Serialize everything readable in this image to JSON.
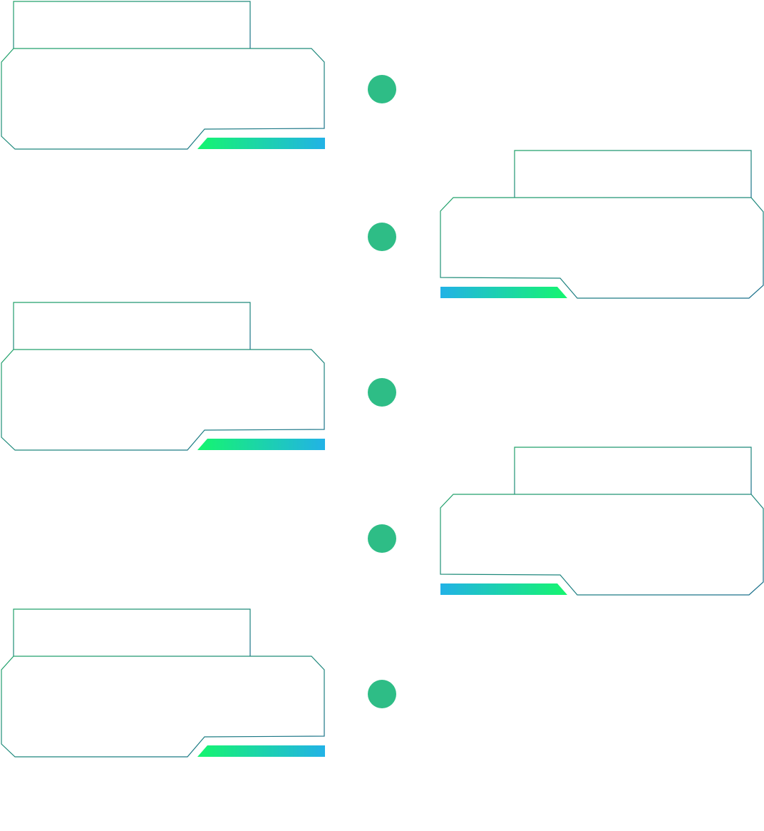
{
  "colors": {
    "outline_start": "#22a36a",
    "outline_end": "#1a6e8c",
    "node": "#2ebd86",
    "accent_green": "#15f56f",
    "accent_blue": "#22b2e6",
    "background": "#ffffff"
  },
  "timeline": {
    "items": [
      {
        "side": "left",
        "label": "",
        "text": ""
      },
      {
        "side": "right",
        "label": "",
        "text": ""
      },
      {
        "side": "left",
        "label": "",
        "text": ""
      },
      {
        "side": "right",
        "label": "",
        "text": ""
      },
      {
        "side": "left",
        "label": "",
        "text": ""
      }
    ],
    "node_count": 5
  }
}
